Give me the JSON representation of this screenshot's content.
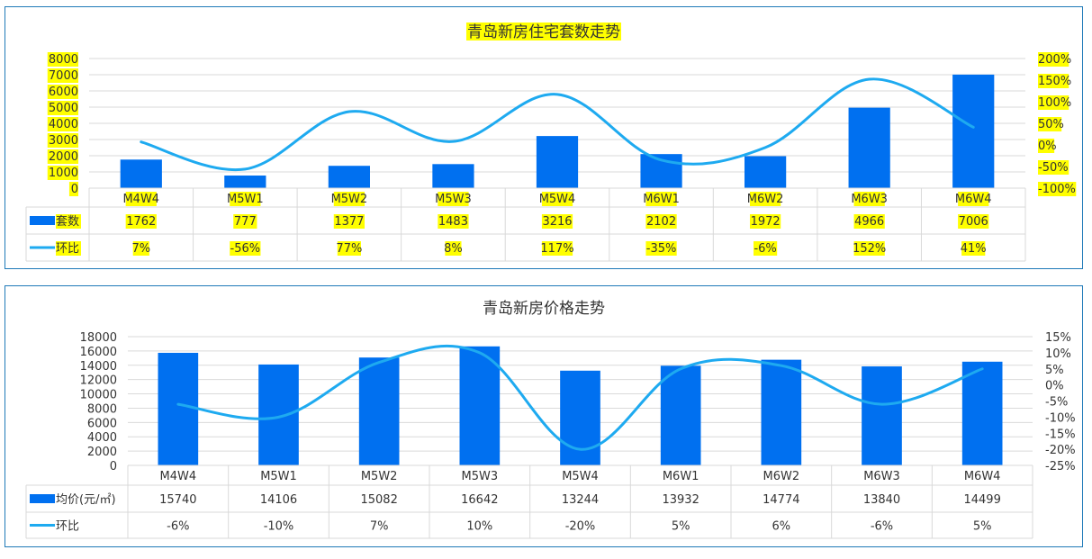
{
  "colors": {
    "bar": "#0070f0",
    "line": "#1eaaf0",
    "highlight": "#ffff00",
    "border": "#1f7ab8",
    "grid": "#d9d9d9",
    "text": "#333333"
  },
  "chart_data": [
    {
      "type": "bar",
      "title": "青岛新房住宅套数走势",
      "categories": [
        "M4W4",
        "M5W1",
        "M5W2",
        "M5W3",
        "M5W4",
        "M6W1",
        "M6W2",
        "M6W3",
        "M6W4"
      ],
      "series": [
        {
          "name": "套数",
          "type": "bar",
          "axis": "left",
          "values": [
            1762,
            777,
            1377,
            1483,
            3216,
            2102,
            1972,
            4966,
            7006
          ],
          "labels": [
            "1762",
            "777",
            "1377",
            "1483",
            "3216",
            "2102",
            "1972",
            "4966",
            "7006"
          ]
        },
        {
          "name": "环比",
          "type": "line",
          "axis": "right",
          "values": [
            7,
            -56,
            77,
            8,
            117,
            -35,
            -6,
            152,
            41
          ],
          "labels": [
            "7%",
            "-56%",
            "77%",
            "8%",
            "117%",
            "-35%",
            "-6%",
            "152%",
            "41%"
          ]
        }
      ],
      "y_left": {
        "min": 0,
        "max": 8000,
        "ticks": [
          "0",
          "1000",
          "2000",
          "3000",
          "4000",
          "5000",
          "6000",
          "7000",
          "8000"
        ]
      },
      "y_right": {
        "min": -100,
        "max": 200,
        "ticks": [
          "-100%",
          "-50%",
          "0%",
          "50%",
          "100%",
          "150%",
          "200%"
        ]
      },
      "highlighted": true
    },
    {
      "type": "bar",
      "title": "青岛新房价格走势",
      "categories": [
        "M4W4",
        "M5W1",
        "M5W2",
        "M5W3",
        "M5W4",
        "M6W1",
        "M6W2",
        "M6W3",
        "M6W4"
      ],
      "series": [
        {
          "name": "均价(元/㎡)",
          "type": "bar",
          "axis": "left",
          "values": [
            15740,
            14106,
            15082,
            16642,
            13244,
            13932,
            14774,
            13840,
            14499
          ],
          "labels": [
            "15740",
            "14106",
            "15082",
            "16642",
            "13244",
            "13932",
            "14774",
            "13840",
            "14499"
          ]
        },
        {
          "name": "环比",
          "type": "line",
          "axis": "right",
          "values": [
            -6,
            -10,
            7,
            10,
            -20,
            5,
            6,
            -6,
            5
          ],
          "labels": [
            "-6%",
            "-10%",
            "7%",
            "10%",
            "-20%",
            "5%",
            "6%",
            "-6%",
            "5%"
          ]
        }
      ],
      "y_left": {
        "min": 0,
        "max": 18000,
        "ticks": [
          "0",
          "2000",
          "4000",
          "6000",
          "8000",
          "10000",
          "12000",
          "14000",
          "16000",
          "18000"
        ]
      },
      "y_right": {
        "min": -25,
        "max": 15,
        "ticks": [
          "-25%",
          "-20%",
          "-15%",
          "-10%",
          "-5%",
          "0%",
          "5%",
          "10%",
          "15%"
        ]
      },
      "highlighted": false
    }
  ]
}
